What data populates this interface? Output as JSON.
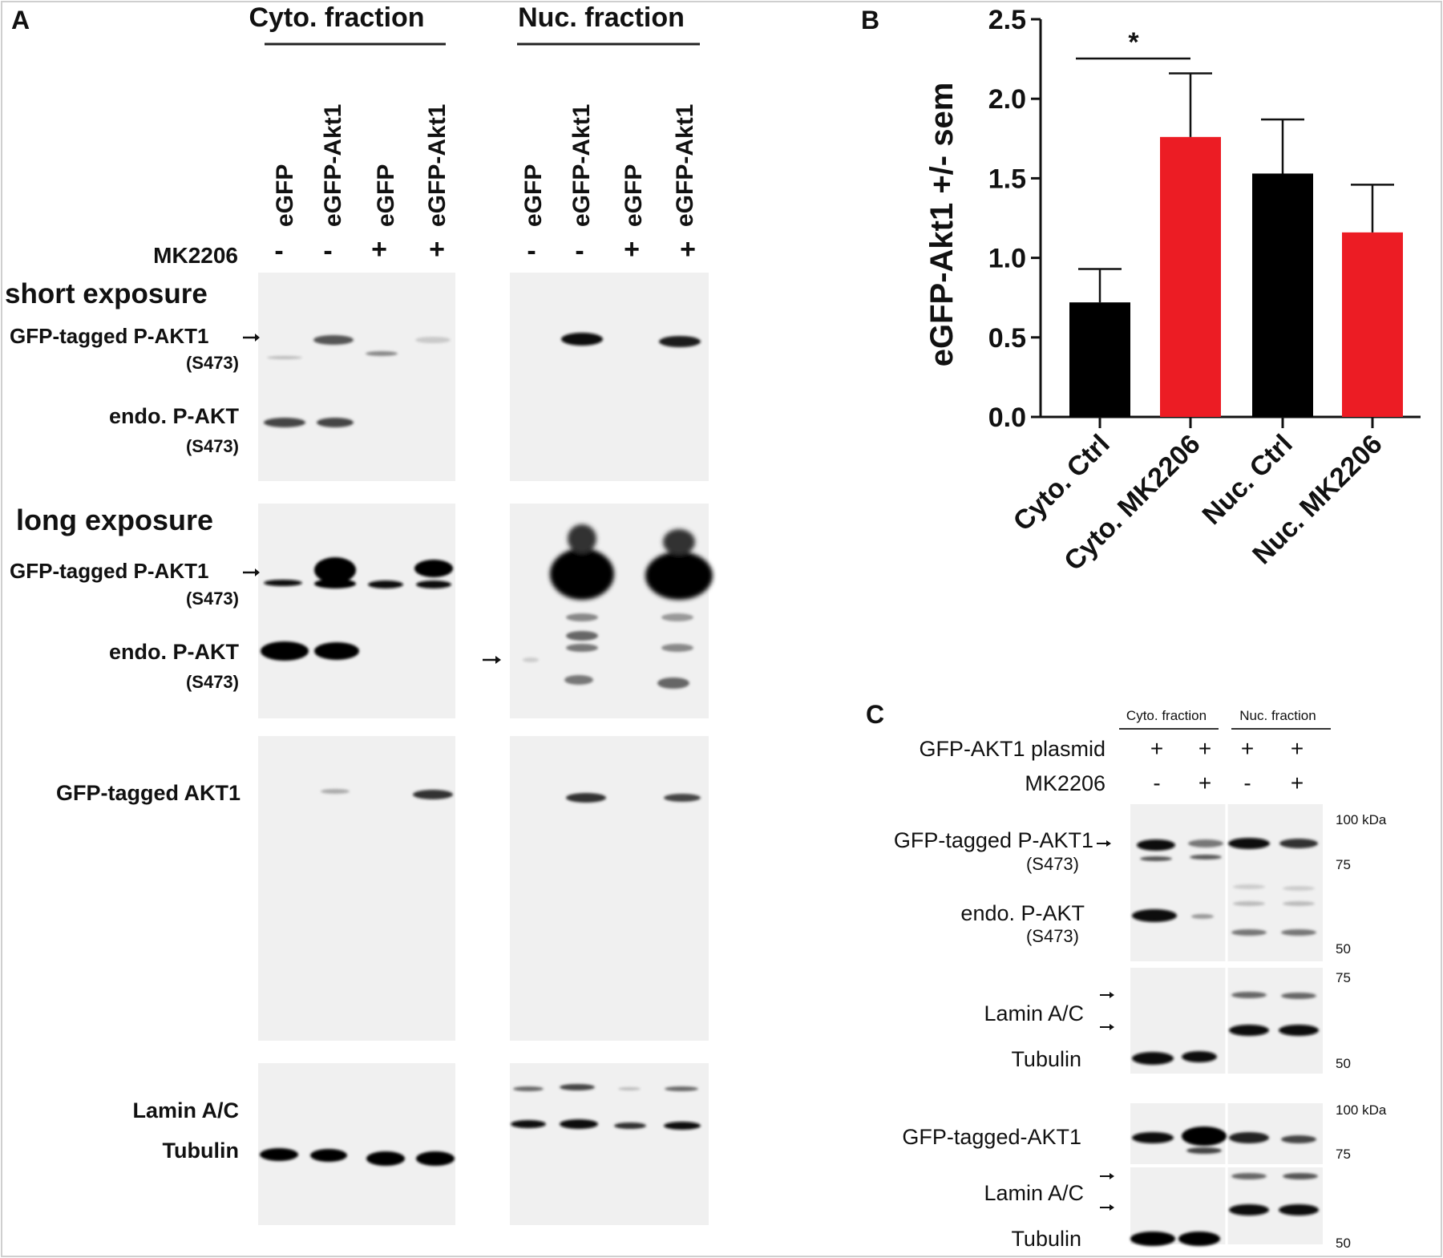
{
  "panelA": {
    "letter": "A",
    "cyto_header": "Cyto. fraction",
    "nuc_header": "Nuc. fraction",
    "lanes": [
      "eGFP",
      "eGFP-Akt1",
      "eGFP",
      "eGFP-Akt1"
    ],
    "treatment_label": "MK2206",
    "treatment_signs": [
      "-",
      "-",
      "+",
      "+"
    ],
    "short_exposure": "short exposure",
    "long_exposure": "long exposure",
    "gfp_pakt1": "GFP-tagged P-AKT1",
    "site": "(S473)",
    "endo_pakt": "endo. P-AKT",
    "gfp_akt1": "GFP-tagged AKT1",
    "lamin": "Lamin A/C",
    "tubulin": "Tubulin"
  },
  "panelB": {
    "letter": "B",
    "significance": "*",
    "colors": {
      "ctrl": "#000000",
      "mk2206": "#ec1c24"
    }
  },
  "chart_data": {
    "type": "bar",
    "categories": [
      "Cyto. Ctrl",
      "Cyto. MK2206",
      "Nuc. Ctrl",
      "Nuc. MK2206"
    ],
    "values": [
      0.72,
      1.76,
      1.53,
      1.16
    ],
    "errors": [
      0.21,
      0.4,
      0.34,
      0.3
    ],
    "ylabel": "eGFP-Akt1 +/- sem",
    "ylim": [
      0,
      2.5
    ],
    "yticks": [
      "0.0",
      "0.5",
      "1.0",
      "1.5",
      "2.0",
      "2.5"
    ],
    "grid": false
  },
  "panelC": {
    "letter": "C",
    "cyto_header": "Cyto. fraction",
    "nuc_header": "Nuc. fraction",
    "plasmid_label": "GFP-AKT1 plasmid",
    "plasmid_signs": [
      "+",
      "+",
      "+",
      "+"
    ],
    "treatment_label": "MK2206",
    "treatment_signs": [
      "-",
      "+",
      "-",
      "+"
    ],
    "gfp_pakt1": "GFP-tagged P-AKT1",
    "site": "(S473)",
    "endo_pakt": "endo. P-AKT",
    "lamin": "Lamin A/C",
    "tubulin": "Tubulin",
    "gfp_akt1": "GFP-tagged-AKT1",
    "mw": {
      "m100": "100 kDa",
      "m75": "75",
      "m50": "50"
    }
  }
}
